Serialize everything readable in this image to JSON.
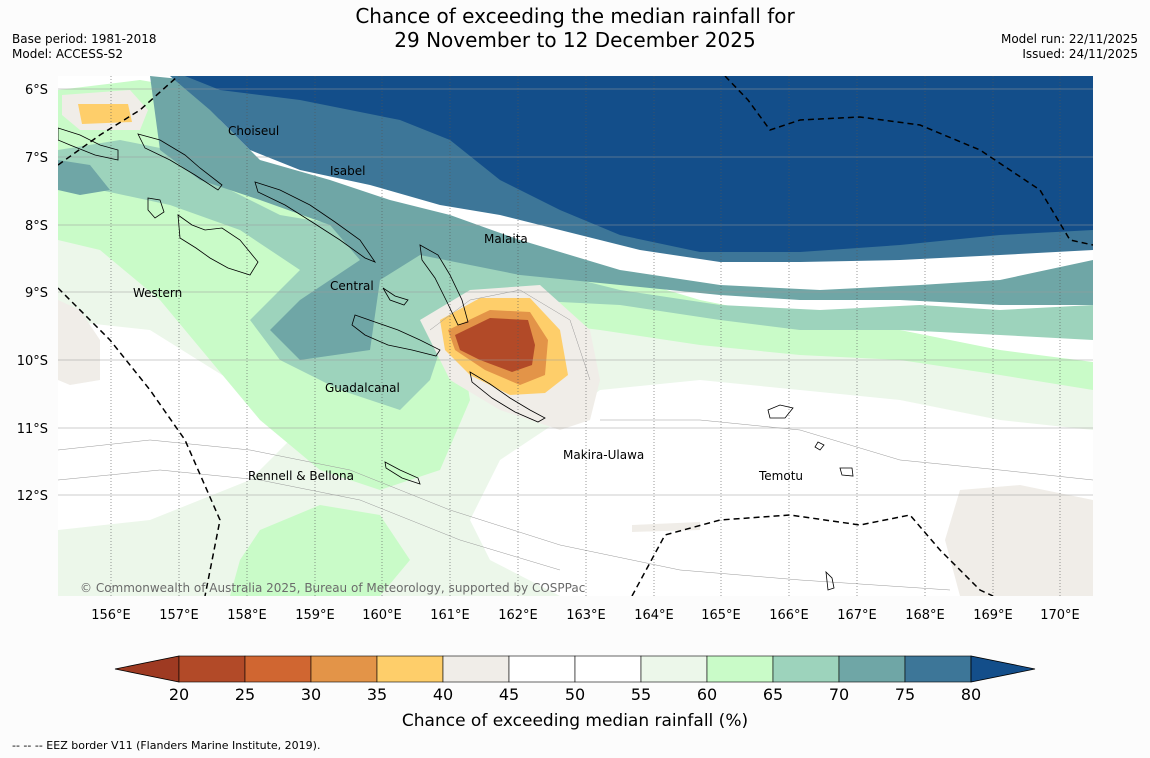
{
  "title": {
    "line1": "Chance of exceeding the median rainfall for",
    "line2": "29 November to 12 December 2025"
  },
  "meta_left": {
    "base_period": "Base period: 1981-2018",
    "model": "Model: ACCESS-S2"
  },
  "meta_right": {
    "model_run": "Model run: 22/11/2025",
    "issued": "Issued: 24/11/2025"
  },
  "map": {
    "lat_labels": [
      "6°S",
      "7°S",
      "8°S",
      "9°S",
      "10°S",
      "11°S",
      "12°S"
    ],
    "lon_labels": [
      "156°E",
      "157°E",
      "158°E",
      "159°E",
      "160°E",
      "161°E",
      "162°E",
      "163°E",
      "164°E",
      "165°E",
      "166°E",
      "167°E",
      "168°E",
      "169°E",
      "170°E"
    ],
    "regions": {
      "choiseul": "Choiseul",
      "isabel": "Isabel",
      "malaita": "Malaita",
      "western": "Western",
      "central": "Central",
      "guadalcanal": "Guadalcanal",
      "makira": "Makira-Ulawa",
      "rennell": "Rennell & Bellona",
      "temotu": "Temotu"
    },
    "copyright": "© Commonwealth of Australia 2025, Bureau of Meteorology, supported by COSPPac"
  },
  "colorbar": {
    "ticks": [
      "20",
      "25",
      "30",
      "35",
      "40",
      "45",
      "50",
      "55",
      "60",
      "65",
      "70",
      "75",
      "80"
    ],
    "label": "Chance of exceeding median rainfall (%)",
    "colors": [
      "#9e3a22",
      "#b24a28",
      "#d06631",
      "#e39448",
      "#fece6a",
      "#f0ede8",
      "#ffffff",
      "#ffffff",
      "#ecf7ea",
      "#c9fbc8",
      "#9dd3bc",
      "#6fa6a6",
      "#3d7698",
      "#134e8a"
    ]
  },
  "footer": "--  --  -- EEZ border V11 (Flanders Marine Institute, 2019)."
}
